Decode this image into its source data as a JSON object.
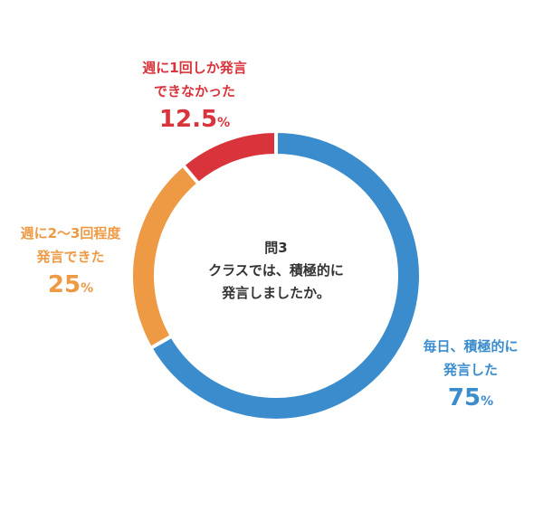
{
  "chart_data": {
    "type": "pie",
    "donut": true,
    "center_text": "問3\nクラスでは、積極的に\n発言しましたか。",
    "categories": [
      "毎日、積極的に\n発言した",
      "週に2～3回程度\n発言できた",
      "週に1回しか発言\nできなかった"
    ],
    "values": [
      75,
      25,
      12.5
    ],
    "unit": "%",
    "colors": [
      "#3a8ccd",
      "#ee9a45",
      "#d9343c"
    ]
  }
}
